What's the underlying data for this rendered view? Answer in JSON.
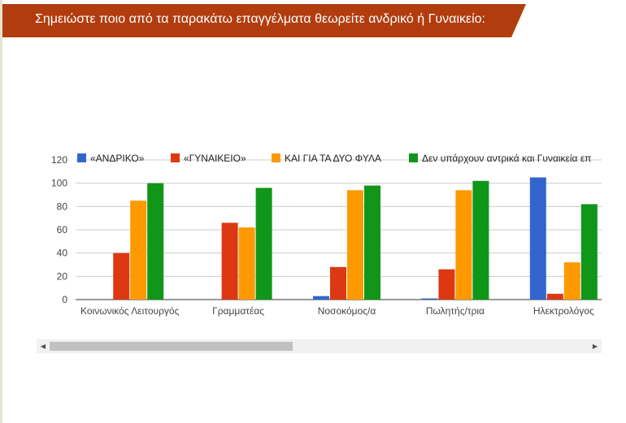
{
  "header": {
    "title": "Σημειώστε ποιο από τα παρακάτω επαγγέλματα θεωρείτε ανδρικό ή Γυναικείο:"
  },
  "colors": {
    "banner": "#b13d0f",
    "series": [
      "#3366cc",
      "#dc3912",
      "#ff9900",
      "#109618"
    ]
  },
  "scrollbar": {
    "left_icon": "arrow-left-icon",
    "right_icon": "arrow-right-icon"
  },
  "chart_data": {
    "type": "bar",
    "categories": [
      "Κοινωνικός Λειτουργός",
      "Γραμματέας",
      "Νοσοκόμος/α",
      "Πωλητής/τρια",
      "Ηλεκτρολόγος"
    ],
    "series": [
      {
        "name": "«ΑΝΔΡΙΚΟ»",
        "values": [
          0,
          0,
          3,
          1,
          105
        ]
      },
      {
        "name": "«ΓΥΝΑΙΚΕΙΟ»",
        "values": [
          40,
          66,
          28,
          26,
          5
        ]
      },
      {
        "name": "ΚΑΙ ΓΙΑ ΤΑ ΔΥΟ ΦΥΛΑ",
        "values": [
          85,
          62,
          94,
          94,
          32
        ]
      },
      {
        "name": "Δεν υπάρχουν αντρικά και Γυναικεία επ",
        "values": [
          100,
          96,
          98,
          102,
          82
        ]
      }
    ],
    "yticks": [
      0,
      20,
      40,
      60,
      80,
      100,
      120
    ],
    "ylim": [
      0,
      120
    ],
    "grid": true,
    "legend": "top"
  }
}
